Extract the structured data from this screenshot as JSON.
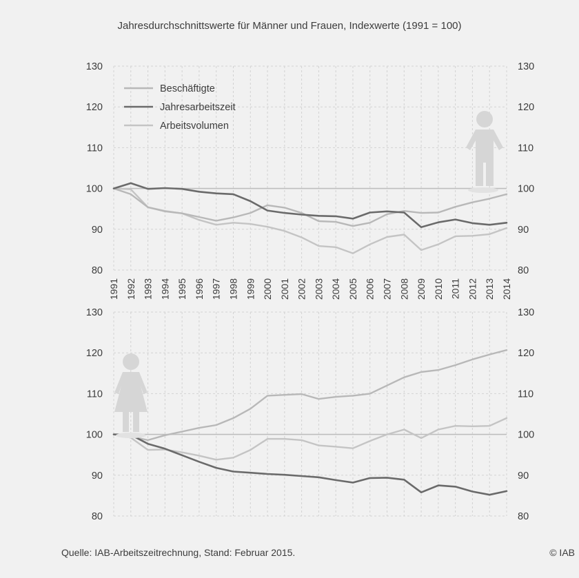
{
  "header": {
    "subtitle": "Jahresdurchschnittswerte für Männer und Frauen, Indexwerte (1991 = 100)"
  },
  "footer": {
    "source": "Quelle: IAB-Arbeitszeitrechnung, Stand: Februar 2015.",
    "copyright": "© IAB"
  },
  "colors": {
    "background": "#f1f1f1",
    "grid": "#d2d2d2",
    "baseline": "#bdbdbd",
    "beschaeftigte": "#b8b8b8",
    "jahresarbeitszeit": "#6a6a6a",
    "arbeitsvolumen": "#c4c4c4",
    "figure": "#d6d6d6"
  },
  "icons": {
    "men": "man-figure-icon",
    "women": "woman-figure-icon"
  },
  "chart_data": [
    {
      "type": "line",
      "panel": "Männer",
      "x": [
        "1991",
        "1992",
        "1993",
        "1994",
        "1995",
        "1996",
        "1997",
        "1998",
        "1999",
        "2000",
        "2001",
        "2002",
        "2003",
        "2004",
        "2005",
        "2006",
        "2007",
        "2008",
        "2009",
        "2010",
        "2011",
        "2012",
        "2013",
        "2014"
      ],
      "y_ticks": [
        80,
        90,
        100,
        110,
        120,
        130
      ],
      "ylim": [
        80,
        130
      ],
      "grid": true,
      "secondary_axis": "mirrored",
      "legend": {
        "position": "top-left"
      },
      "series": [
        {
          "name": "Beschäftigte",
          "color": "#b8b8b8",
          "values": [
            100,
            98.6,
            95.4,
            94.4,
            93.9,
            93.0,
            92.1,
            92.9,
            94.0,
            95.9,
            95.3,
            94.0,
            92.0,
            91.8,
            90.8,
            91.6,
            93.7,
            94.5,
            94.0,
            94.1,
            95.5,
            96.6,
            97.5,
            98.6
          ]
        },
        {
          "name": "Jahresarbeitszeit",
          "color": "#6a6a6a",
          "values": [
            100,
            101.3,
            99.9,
            100.1,
            99.9,
            99.2,
            98.8,
            98.6,
            96.9,
            94.6,
            94.0,
            93.6,
            93.3,
            93.2,
            92.6,
            94.1,
            94.4,
            94.1,
            90.5,
            91.7,
            92.4,
            91.5,
            91.1,
            91.6
          ]
        },
        {
          "name": "Arbeitsvolumen",
          "color": "#c4c4c4",
          "values": [
            100,
            99.8,
            95.4,
            94.5,
            93.9,
            92.3,
            91.1,
            91.6,
            91.3,
            90.6,
            89.6,
            88.0,
            85.9,
            85.6,
            84.1,
            86.3,
            88.1,
            88.7,
            84.9,
            86.3,
            88.3,
            88.4,
            88.8,
            90.3
          ]
        }
      ]
    },
    {
      "type": "line",
      "panel": "Frauen",
      "x": [
        "1991",
        "1992",
        "1993",
        "1994",
        "1995",
        "1996",
        "1997",
        "1998",
        "1999",
        "2000",
        "2001",
        "2002",
        "2003",
        "2004",
        "2005",
        "2006",
        "2007",
        "2008",
        "2009",
        "2010",
        "2011",
        "2012",
        "2013",
        "2014"
      ],
      "y_ticks": [
        80,
        90,
        100,
        110,
        120,
        130
      ],
      "ylim": [
        80,
        130
      ],
      "grid": true,
      "secondary_axis": "mirrored",
      "legend": {
        "position": "shared, top-left of upper panel"
      },
      "series": [
        {
          "name": "Beschäftigte",
          "color": "#b8b8b8",
          "values": [
            100,
            99.5,
            98.6,
            99.8,
            100.7,
            101.6,
            102.3,
            104.0,
            106.3,
            109.5,
            109.7,
            109.9,
            108.7,
            109.2,
            109.5,
            110.0,
            112.0,
            114.0,
            115.3,
            115.8,
            117.0,
            118.4,
            119.6,
            120.7
          ]
        },
        {
          "name": "Jahresarbeitszeit",
          "color": "#6a6a6a",
          "values": [
            100,
            99.9,
            97.7,
            96.5,
            94.9,
            93.3,
            91.8,
            90.9,
            90.6,
            90.3,
            90.1,
            89.8,
            89.5,
            88.8,
            88.2,
            89.3,
            89.4,
            88.9,
            85.8,
            87.5,
            87.2,
            86.0,
            85.2,
            86.1
          ]
        },
        {
          "name": "Arbeitsvolumen",
          "color": "#c4c4c4",
          "values": [
            100,
            99.2,
            96.2,
            96.3,
            95.6,
            94.8,
            93.8,
            94.3,
            96.2,
            98.9,
            98.9,
            98.6,
            97.3,
            97.0,
            96.6,
            98.4,
            100.0,
            101.2,
            99.1,
            101.2,
            102.1,
            102.0,
            102.1,
            104.0
          ]
        }
      ]
    }
  ]
}
